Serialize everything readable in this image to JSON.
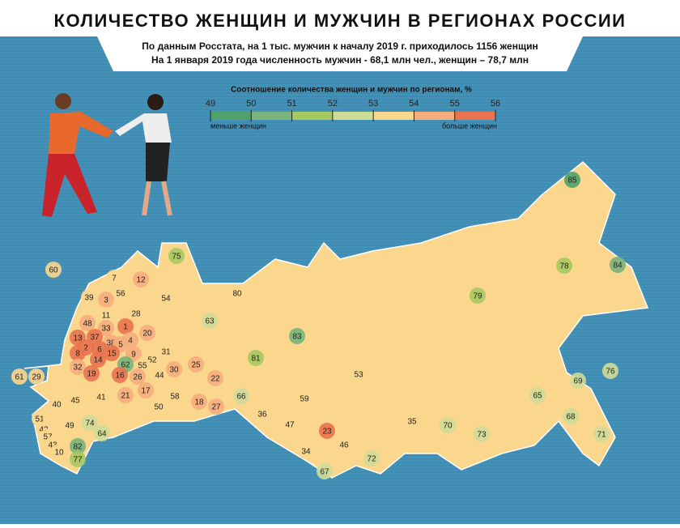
{
  "header": {
    "title": "КОЛИЧЕСТВО ЖЕНЩИН И МУЖЧИН В РЕГИОНАХ РОССИИ",
    "subtitle": [
      "По данным Росстата, на 1 тыс. мужчин к началу 2019 г. приходилось 1156 женщин",
      "На 1 января 2019 года численность мужчин - 68,1 млн чел., женщин – 78,7 млн"
    ]
  },
  "legend": {
    "title": "Соотношение количества женщин и мужчин по регионам, %",
    "ticks": [
      49,
      50,
      51,
      52,
      53,
      54,
      55,
      56
    ],
    "colors": [
      "#4fa16c",
      "#78b47b",
      "#a6c95f",
      "#cfdc98",
      "#fbd68d",
      "#f5ad7c",
      "#e9734f"
    ],
    "left_label": "меньше женщин",
    "right_label": "больше женщин"
  },
  "regions": [
    {
      "label": "85",
      "color": "#4fa16c"
    },
    {
      "label": "84",
      "color": "#78b47b"
    },
    {
      "label": "78",
      "color": "#a6c95f"
    },
    {
      "label": "79",
      "color": "#a6c95f"
    },
    {
      "label": "76",
      "color": "#cfdc98"
    },
    {
      "label": "69",
      "color": "#cfdc98"
    },
    {
      "label": "65",
      "color": "#cfdc98"
    },
    {
      "label": "68",
      "color": "#cfdc98"
    },
    {
      "label": "71",
      "color": "#cfdc98"
    },
    {
      "label": "73",
      "color": "#cfdc98"
    },
    {
      "label": "70",
      "color": "#cfdc98"
    },
    {
      "label": "72",
      "color": "#cfdc98"
    },
    {
      "label": "35",
      "color": "#fbd68d"
    },
    {
      "label": "53",
      "color": "#fbd68d"
    },
    {
      "label": "83",
      "color": "#78b47b"
    },
    {
      "label": "81",
      "color": "#a6c95f"
    },
    {
      "label": "80",
      "color": "#fbd68d"
    },
    {
      "label": "75",
      "color": "#a6c95f"
    },
    {
      "label": "12",
      "color": "#f5ad7c"
    },
    {
      "label": "7",
      "color": "#fbd68d"
    },
    {
      "label": "56",
      "color": "#fbd68d"
    },
    {
      "label": "39",
      "color": "#fbd68d"
    },
    {
      "label": "3",
      "color": "#f5ad7c"
    },
    {
      "label": "54",
      "color": "#fbd68d"
    },
    {
      "label": "63",
      "color": "#cfdc98"
    },
    {
      "label": "28",
      "color": "#fbd68d"
    },
    {
      "label": "11",
      "color": "#fbd68d"
    },
    {
      "label": "48",
      "color": "#f5ad7c"
    },
    {
      "label": "33",
      "color": "#f5ad7c"
    },
    {
      "label": "1",
      "color": "#e9734f"
    },
    {
      "label": "13",
      "color": "#e9734f"
    },
    {
      "label": "37",
      "color": "#e9734f"
    },
    {
      "label": "4",
      "color": "#f5ad7c"
    },
    {
      "label": "20",
      "color": "#f5ad7c"
    },
    {
      "label": "38",
      "color": "#f5ad7c"
    },
    {
      "label": "5",
      "color": "#f5ad7c"
    },
    {
      "label": "2",
      "color": "#e9734f"
    },
    {
      "label": "6",
      "color": "#e9734f"
    },
    {
      "label": "8",
      "color": "#e9734f"
    },
    {
      "label": "14",
      "color": "#e9734f"
    },
    {
      "label": "15",
      "color": "#e9734f"
    },
    {
      "label": "9",
      "color": "#f5ad7c"
    },
    {
      "label": "31",
      "color": "#fbd68d"
    },
    {
      "label": "25",
      "color": "#f5ad7c"
    },
    {
      "label": "22",
      "color": "#f5ad7c"
    },
    {
      "label": "52",
      "color": "#fbd68d"
    },
    {
      "label": "62",
      "color": "#78b47b"
    },
    {
      "label": "55",
      "color": "#fbd68d"
    },
    {
      "label": "32",
      "color": "#f5ad7c"
    },
    {
      "label": "19",
      "color": "#e9734f"
    },
    {
      "label": "16",
      "color": "#e9734f"
    },
    {
      "label": "26",
      "color": "#f5ad7c"
    },
    {
      "label": "44",
      "color": "#fbd68d"
    },
    {
      "label": "30",
      "color": "#f5ad7c"
    },
    {
      "label": "17",
      "color": "#f5ad7c"
    },
    {
      "label": "21",
      "color": "#f5ad7c"
    },
    {
      "label": "41",
      "color": "#fbd68d"
    },
    {
      "label": "45",
      "color": "#fbd68d"
    },
    {
      "label": "40",
      "color": "#fbd68d"
    },
    {
      "label": "58",
      "color": "#fbd68d"
    },
    {
      "label": "18",
      "color": "#f5ad7c"
    },
    {
      "label": "27",
      "color": "#f5ad7c"
    },
    {
      "label": "50",
      "color": "#fbd68d"
    },
    {
      "label": "66",
      "color": "#cfdc98"
    },
    {
      "label": "59",
      "color": "#fbd68d"
    },
    {
      "label": "36",
      "color": "#fbd68d"
    },
    {
      "label": "47",
      "color": "#fbd68d"
    },
    {
      "label": "23",
      "color": "#e9734f"
    },
    {
      "label": "46",
      "color": "#fbd68d"
    },
    {
      "label": "34",
      "color": "#fbd68d"
    },
    {
      "label": "67",
      "color": "#cfdc98"
    },
    {
      "label": "74",
      "color": "#cfdc98"
    },
    {
      "label": "64",
      "color": "#cfdc98"
    },
    {
      "label": "49",
      "color": "#fbd68d"
    },
    {
      "label": "51",
      "color": "#fbd68d"
    },
    {
      "label": "42",
      "color": "#fbd68d"
    },
    {
      "label": "57",
      "color": "#fbd68d"
    },
    {
      "label": "43",
      "color": "#fbd68d"
    },
    {
      "label": "10",
      "color": "#fbd68d"
    },
    {
      "label": "82",
      "color": "#78b47b"
    },
    {
      "label": "77",
      "color": "#a6c95f"
    },
    {
      "label": "60",
      "color": "#fbd68d"
    },
    {
      "label": "61",
      "color": "#fbd68d"
    },
    {
      "label": "29",
      "color": "#fbd68d"
    }
  ]
}
